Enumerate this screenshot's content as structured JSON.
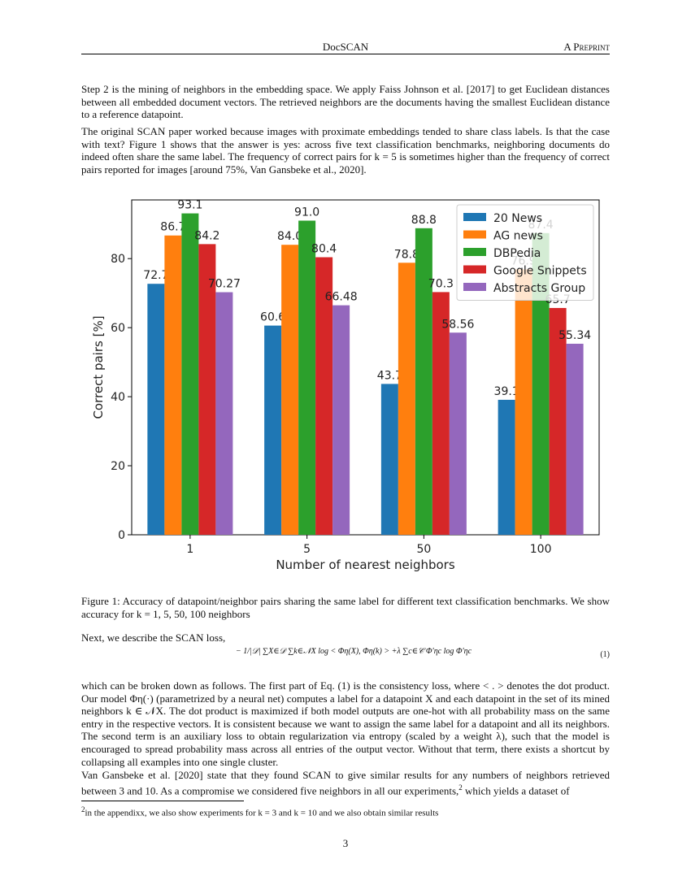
{
  "header": {
    "title": "DocSCAN",
    "tag": "A Preprint"
  },
  "paragraphs": {
    "p1": "Step 2 is the mining of neighbors in the embedding space. We apply Faiss Johnson et al. [2017] to get Euclidean distances between all embedded document vectors. The retrieved neighbors are the documents having the smallest Euclidean distance to a reference datapoint.",
    "p2": "The original SCAN paper worked because images with proximate embeddings tended to share class labels. Is that the case with text? Figure 1 shows that the answer is yes: across five text classification benchmarks, neighboring documents do indeed often share the same label. The frequency of correct pairs for k = 5 is sometimes higher than the frequency of correct pairs reported for images [around 75%, Van Gansbeke et al., 2020].",
    "caption": "Figure 1: Accuracy of datapoint/neighbor pairs sharing the same label for different text classification benchmarks. We show accuracy for k = 1, 5, 50, 100 neighbors",
    "p3": "Next, we describe the SCAN loss,",
    "equation": "− 1/|𝒟| ∑X∈𝒟 ∑k∈𝒩X log < Φη(X), Φη(k) > +λ ∑c∈𝒞 Φ′ηc log Φ′ηc",
    "equation_number": "(1)",
    "p4": "which can be broken down as follows. The first part of Eq. (1) is the consistency loss, where < . > denotes the dot product. Our model Φη(·) (parametrized by a neural net) computes a label for a datapoint X and each datapoint in the set of its mined neighbors k ∈ 𝒩X. The dot product is maximized if both model outputs are one-hot with all probability mass on the same entry in the respective vectors. It is consistent because we want to assign the same label for a datapoint and all its neighbors. The second term is an auxiliary loss to obtain regularization via entropy (scaled by a weight λ), such that the model is encouraged to spread probability mass across all entries of the output vector. Without that term, there exists a shortcut by collapsing all examples into one single cluster.",
    "p5": "Van Gansbeke et al. [2020] state that they found SCAN to give similar results for any numbers of neighbors retrieved between 3 and 10. As a compromise we considered five neighbors in all our experiments,",
    "p5_footref": "2",
    "p5_end": " which yields a dataset of",
    "footnote_mark": "2",
    "footnote": "in the appendixx, we also show experiments for k = 3 and k = 10 and we also obtain similar results"
  },
  "page_number": "3",
  "chart_data": {
    "type": "bar",
    "categories": [
      "1",
      "5",
      "50",
      "100"
    ],
    "xlabel": "Number of nearest neighbors",
    "ylabel": "Correct pairs [%]",
    "ylim": [
      0,
      97
    ],
    "yticks": [
      0,
      20,
      40,
      60,
      80
    ],
    "legend_position": "top-right",
    "series": [
      {
        "name": "20 News",
        "color": "#1f77b4",
        "values": [
          72.7,
          60.6,
          43.7,
          39.1
        ],
        "labels": [
          "72.7",
          "60.6",
          "43.7",
          "39.1"
        ]
      },
      {
        "name": "AG news",
        "color": "#ff7f0e",
        "values": [
          86.7,
          84.0,
          78.8,
          76.9
        ],
        "labels": [
          "86.7",
          "84.0",
          "78.8",
          "76.9"
        ]
      },
      {
        "name": "DBPedia",
        "color": "#2ca02c",
        "values": [
          93.1,
          91.0,
          88.8,
          87.4
        ],
        "labels": [
          "93.1",
          "91.0",
          "88.8",
          "87.4"
        ]
      },
      {
        "name": "Google Snippets",
        "color": "#d62728",
        "values": [
          84.2,
          80.4,
          70.3,
          65.7
        ],
        "labels": [
          "84.2",
          "80.4",
          "70.3",
          "65.7"
        ]
      },
      {
        "name": "Abstracts Group",
        "color": "#9467bd",
        "values": [
          70.27,
          66.48,
          58.56,
          55.34
        ],
        "labels": [
          "70.27",
          "66.48",
          "58.56",
          "55.34"
        ]
      }
    ]
  }
}
